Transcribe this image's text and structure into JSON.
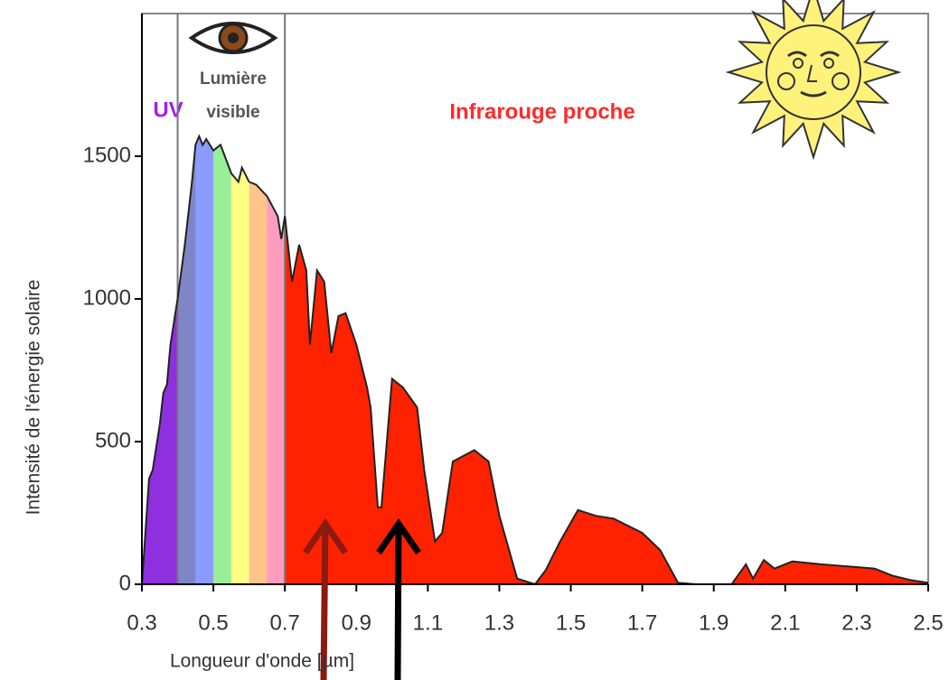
{
  "chart_data": {
    "type": "area",
    "x_label": "Longueur d'onde [µm]",
    "y_label": "Intensité de l'énergie solaire",
    "x": [
      0.3,
      0.32,
      0.33,
      0.35,
      0.36,
      0.37,
      0.38,
      0.4,
      0.42,
      0.44,
      0.45,
      0.46,
      0.47,
      0.48,
      0.5,
      0.52,
      0.55,
      0.57,
      0.58,
      0.6,
      0.62,
      0.65,
      0.68,
      0.69,
      0.7,
      0.72,
      0.74,
      0.76,
      0.77,
      0.79,
      0.81,
      0.83,
      0.85,
      0.87,
      0.9,
      0.93,
      0.94,
      0.96,
      0.97,
      1.0,
      1.03,
      1.07,
      1.09,
      1.12,
      1.14,
      1.17,
      1.2,
      1.23,
      1.27,
      1.3,
      1.35,
      1.4,
      1.43,
      1.47,
      1.52,
      1.57,
      1.62,
      1.7,
      1.75,
      1.8,
      1.85,
      1.95,
      1.99,
      2.01,
      2.04,
      2.07,
      2.12,
      2.2,
      2.3,
      2.35,
      2.4,
      2.45,
      2.5
    ],
    "values": [
      0,
      370,
      400,
      560,
      670,
      700,
      840,
      1000,
      1190,
      1410,
      1540,
      1570,
      1540,
      1560,
      1520,
      1540,
      1440,
      1410,
      1460,
      1410,
      1400,
      1360,
      1290,
      1210,
      1290,
      1060,
      1190,
      1100,
      840,
      1100,
      1060,
      810,
      940,
      950,
      840,
      690,
      620,
      270,
      270,
      720,
      690,
      620,
      400,
      150,
      180,
      430,
      450,
      470,
      430,
      240,
      20,
      0,
      50,
      150,
      260,
      240,
      230,
      180,
      120,
      5,
      0,
      0,
      70,
      20,
      85,
      55,
      80,
      70,
      60,
      55,
      30,
      15,
      5
    ],
    "regions": [
      {
        "label": [
          "UV"
        ],
        "from": 0.3,
        "to": 0.4,
        "colors": [
          "#8e2fe0"
        ],
        "label_color": "#a020f0"
      },
      {
        "label": [
          "Lumière",
          "visible"
        ],
        "from": 0.4,
        "to": 0.7,
        "colors": [
          "#7f86c8",
          "#8a9cff",
          "#98ef98",
          "#ffff86",
          "#ffc48a",
          "#ff9cc0"
        ],
        "label_color": "#555555"
      },
      {
        "label": [
          "Infrarouge proche"
        ],
        "from": 0.7,
        "to": 2.5,
        "colors": [
          "#ff2200"
        ],
        "label_color": "#ff2a2a"
      }
    ],
    "xlim": [
      0.3,
      2.5
    ],
    "ylim": [
      0,
      2000
    ],
    "xticks": [
      0.3,
      0.5,
      0.7,
      0.9,
      1.1,
      1.3,
      1.5,
      1.7,
      1.9,
      2.1,
      2.3,
      2.5
    ],
    "yticks": [
      0,
      500,
      1000,
      1500
    ]
  }
}
